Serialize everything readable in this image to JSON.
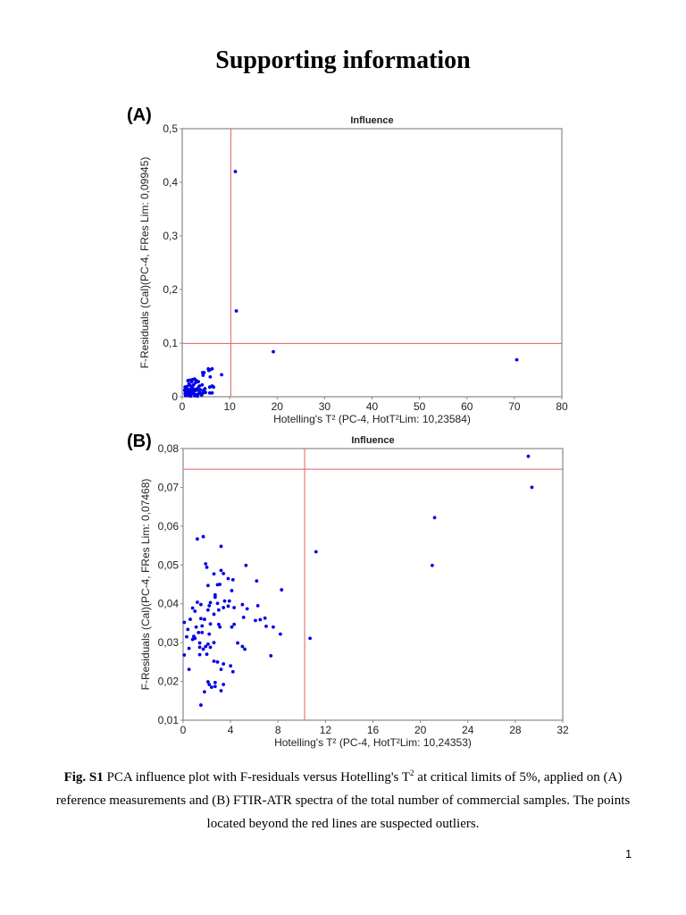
{
  "page": {
    "title": "Supporting information",
    "page_number": "1"
  },
  "caption": {
    "label": "Fig. S1",
    "text_part1": " PCA influence plot with F-residuals versus Hotelling's T",
    "superscript": "2",
    "text_part2": " at critical limits of 5%, applied on (A) reference measurements and (B) FTIR-ATR spectra of the total number of commercial samples. The points located beyond the red lines are suspected outliers."
  },
  "colors": {
    "points": "#0000e6",
    "limit_lines": "#e06060",
    "frame": "#a0a0a0"
  },
  "chart_data": [
    {
      "panel": "(A)",
      "type": "scatter",
      "title": "Influence",
      "xlabel": "Hotelling's T² (PC-4, HotT²Lim: 10,23584)",
      "ylabel": "F-Residuals (Cal)(PC-4, FRes Lim: 0,09945)",
      "xlim": [
        0,
        80
      ],
      "ylim": [
        0,
        0.5
      ],
      "xticks": [
        "0",
        "10",
        "20",
        "30",
        "40",
        "50",
        "60",
        "70",
        "80"
      ],
      "yticks": [
        "0",
        "0,1",
        "0,2",
        "0,3",
        "0,4",
        "0,5"
      ],
      "limits": {
        "x": 10.23584,
        "y": 0.09945
      },
      "grid": false,
      "points": [
        [
          11.2,
          0.42
        ],
        [
          11.4,
          0.16
        ],
        [
          19.2,
          0.084
        ],
        [
          70.5,
          0.069
        ],
        [
          8.3,
          0.041
        ],
        [
          5.5,
          0.052
        ],
        [
          5.8,
          0.05
        ],
        [
          6.3,
          0.052
        ],
        [
          5.6,
          0.049
        ],
        [
          4.3,
          0.045
        ],
        [
          4.6,
          0.045
        ],
        [
          5.9,
          0.037
        ],
        [
          4.4,
          0.04
        ],
        [
          2.6,
          0.033
        ],
        [
          2.2,
          0.032
        ],
        [
          1.2,
          0.03
        ],
        [
          1.6,
          0.031
        ],
        [
          3.0,
          0.03
        ],
        [
          3.4,
          0.028
        ],
        [
          2.0,
          0.028
        ],
        [
          2.8,
          0.026
        ],
        [
          1.4,
          0.024
        ],
        [
          2.4,
          0.022
        ],
        [
          3.6,
          0.02
        ],
        [
          4.2,
          0.022
        ],
        [
          6.3,
          0.02
        ],
        [
          6.6,
          0.018
        ],
        [
          5.8,
          0.018
        ],
        [
          0.6,
          0.018
        ],
        [
          0.9,
          0.016
        ],
        [
          1.1,
          0.014
        ],
        [
          1.5,
          0.013
        ],
        [
          1.9,
          0.015
        ],
        [
          2.3,
          0.012
        ],
        [
          0.5,
          0.012
        ],
        [
          0.8,
          0.01
        ],
        [
          1.2,
          0.009
        ],
        [
          1.6,
          0.008
        ],
        [
          2.0,
          0.01
        ],
        [
          2.6,
          0.011
        ],
        [
          3.1,
          0.012
        ],
        [
          3.8,
          0.013
        ],
        [
          4.5,
          0.012
        ],
        [
          0.6,
          0.006
        ],
        [
          1.0,
          0.005
        ],
        [
          1.4,
          0.004
        ],
        [
          1.9,
          0.005
        ],
        [
          2.4,
          0.006
        ],
        [
          2.9,
          0.004
        ],
        [
          3.4,
          0.005
        ],
        [
          3.9,
          0.006
        ],
        [
          4.4,
          0.007
        ],
        [
          4.9,
          0.008
        ],
        [
          5.8,
          0.007
        ],
        [
          6.3,
          0.007
        ],
        [
          0.7,
          0.002
        ],
        [
          1.3,
          0.002
        ],
        [
          1.8,
          0.001
        ],
        [
          2.6,
          0.002
        ],
        [
          3.2,
          0.001
        ],
        [
          4.1,
          0.003
        ],
        [
          1.0,
          0.019
        ],
        [
          1.7,
          0.021
        ],
        [
          2.1,
          0.017
        ],
        [
          3.3,
          0.016
        ],
        [
          3.7,
          0.009
        ],
        [
          4.8,
          0.015
        ],
        [
          0.9,
          0.013
        ],
        [
          1.3,
          0.011
        ],
        [
          2.7,
          0.014
        ]
      ]
    },
    {
      "panel": "(B)",
      "type": "scatter",
      "title": "Influence",
      "xlabel": "Hotelling's T² (PC-4, HotT²Lim: 10,24353)",
      "ylabel": "F-Residuals (Cal)(PC-4, FRes Lim: 0,07468)",
      "xlim": [
        0,
        32
      ],
      "ylim": [
        0.01,
        0.08
      ],
      "xticks": [
        "0",
        "4",
        "8",
        "12",
        "16",
        "20",
        "24",
        "28",
        "32"
      ],
      "yticks": [
        "0,01",
        "0,02",
        "0,03",
        "0,04",
        "0,05",
        "0,06",
        "0,07",
        "0,08"
      ],
      "limits": {
        "x": 10.24353,
        "y": 0.07468
      },
      "grid": false,
      "points": [
        [
          29.1,
          0.078
        ],
        [
          29.4,
          0.07
        ],
        [
          21.2,
          0.0622
        ],
        [
          21.0,
          0.0499
        ],
        [
          11.2,
          0.0534
        ],
        [
          10.7,
          0.0311
        ],
        [
          1.2,
          0.0567
        ],
        [
          1.7,
          0.0573
        ],
        [
          3.2,
          0.0548
        ],
        [
          1.9,
          0.0503
        ],
        [
          2.0,
          0.0494
        ],
        [
          5.3,
          0.0499
        ],
        [
          3.2,
          0.0486
        ],
        [
          3.4,
          0.0478
        ],
        [
          2.6,
          0.0477
        ],
        [
          3.8,
          0.0465
        ],
        [
          4.2,
          0.0462
        ],
        [
          6.2,
          0.0459
        ],
        [
          2.1,
          0.0447
        ],
        [
          2.9,
          0.0449
        ],
        [
          3.1,
          0.045
        ],
        [
          8.3,
          0.0436
        ],
        [
          4.1,
          0.0434
        ],
        [
          2.7,
          0.0423
        ],
        [
          2.7,
          0.0417
        ],
        [
          1.2,
          0.0404
        ],
        [
          1.5,
          0.0398
        ],
        [
          2.3,
          0.0403
        ],
        [
          2.9,
          0.0401
        ],
        [
          3.5,
          0.0407
        ],
        [
          3.9,
          0.0407
        ],
        [
          5.0,
          0.0398
        ],
        [
          6.3,
          0.0395
        ],
        [
          0.8,
          0.0389
        ],
        [
          1.0,
          0.0381
        ],
        [
          2.2,
          0.0395
        ],
        [
          2.1,
          0.0384
        ],
        [
          3.0,
          0.0384
        ],
        [
          3.4,
          0.039
        ],
        [
          3.8,
          0.0394
        ],
        [
          4.3,
          0.039
        ],
        [
          5.4,
          0.0387
        ],
        [
          0.1,
          0.0352
        ],
        [
          0.6,
          0.036
        ],
        [
          1.5,
          0.0362
        ],
        [
          1.8,
          0.036
        ],
        [
          2.6,
          0.0373
        ],
        [
          6.1,
          0.0357
        ],
        [
          6.5,
          0.0359
        ],
        [
          6.9,
          0.0363
        ],
        [
          5.1,
          0.0365
        ],
        [
          1.1,
          0.034
        ],
        [
          1.6,
          0.0343
        ],
        [
          2.3,
          0.0348
        ],
        [
          3.0,
          0.0347
        ],
        [
          3.1,
          0.034
        ],
        [
          4.1,
          0.034
        ],
        [
          4.3,
          0.0347
        ],
        [
          7.0,
          0.0342
        ],
        [
          7.6,
          0.034
        ],
        [
          0.4,
          0.0334
        ],
        [
          1.3,
          0.0326
        ],
        [
          1.6,
          0.0326
        ],
        [
          2.2,
          0.0322
        ],
        [
          8.2,
          0.0322
        ],
        [
          0.3,
          0.0315
        ],
        [
          0.9,
          0.0316
        ],
        [
          0.8,
          0.0308
        ],
        [
          1.0,
          0.0311
        ],
        [
          1.4,
          0.0299
        ],
        [
          2.1,
          0.0296
        ],
        [
          2.6,
          0.03
        ],
        [
          4.6,
          0.0299
        ],
        [
          1.4,
          0.0288
        ],
        [
          1.7,
          0.0283
        ],
        [
          1.9,
          0.029
        ],
        [
          2.3,
          0.0288
        ],
        [
          5.0,
          0.029
        ],
        [
          5.2,
          0.0283
        ],
        [
          0.5,
          0.0285
        ],
        [
          0.1,
          0.0268
        ],
        [
          1.4,
          0.0269
        ],
        [
          2.0,
          0.027
        ],
        [
          7.4,
          0.0266
        ],
        [
          2.6,
          0.0252
        ],
        [
          2.9,
          0.025
        ],
        [
          3.4,
          0.0245
        ],
        [
          4.0,
          0.024
        ],
        [
          0.5,
          0.0231
        ],
        [
          3.2,
          0.0231
        ],
        [
          4.2,
          0.0225
        ],
        [
          2.1,
          0.0199
        ],
        [
          2.2,
          0.0192
        ],
        [
          2.7,
          0.0197
        ],
        [
          2.4,
          0.0185
        ],
        [
          2.7,
          0.0187
        ],
        [
          3.4,
          0.0192
        ],
        [
          1.8,
          0.0173
        ],
        [
          3.2,
          0.0176
        ],
        [
          1.5,
          0.0139
        ]
      ]
    }
  ]
}
